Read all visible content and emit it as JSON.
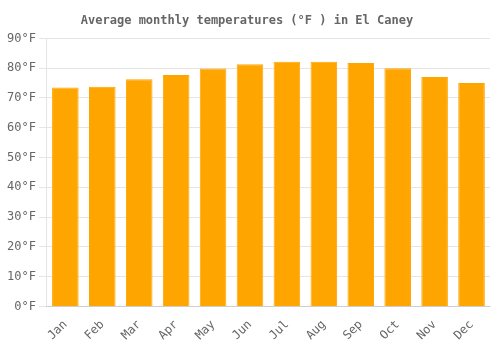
{
  "chart_data": {
    "type": "bar",
    "title": "Average monthly temperatures (°F ) in El Caney",
    "categories": [
      "Jan",
      "Feb",
      "Mar",
      "Apr",
      "May",
      "Jun",
      "Jul",
      "Aug",
      "Sep",
      "Oct",
      "Nov",
      "Dec"
    ],
    "values": [
      73.5,
      73.8,
      76.3,
      77.7,
      79.9,
      81.3,
      82.2,
      82.2,
      81.7,
      80.0,
      77.0,
      75.0
    ],
    "color": "#FFA500",
    "ylim": [
      0,
      90
    ],
    "yticks": [
      {
        "value": 0,
        "label": "0°F"
      },
      {
        "value": 10,
        "label": "10°F"
      },
      {
        "value": 20,
        "label": "20°F"
      },
      {
        "value": 30,
        "label": "30°F"
      },
      {
        "value": 40,
        "label": "40°F"
      },
      {
        "value": 50,
        "label": "50°F"
      },
      {
        "value": 60,
        "label": "60°F"
      },
      {
        "value": 70,
        "label": "70°F"
      },
      {
        "value": 80,
        "label": "80°F"
      },
      {
        "value": 90,
        "label": "90°F"
      }
    ],
    "grid": true
  }
}
